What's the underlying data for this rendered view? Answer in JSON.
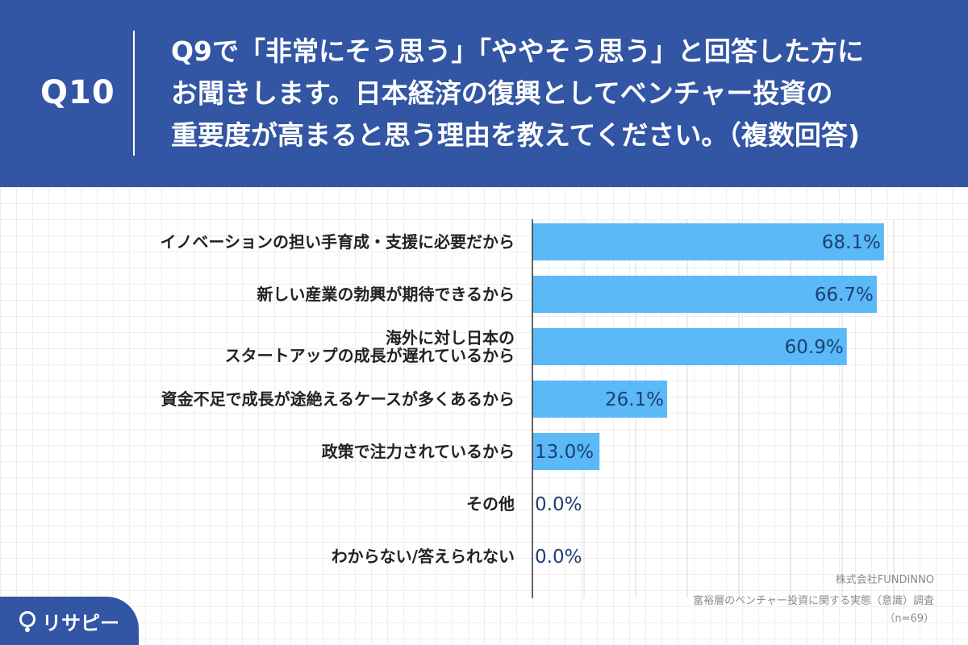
{
  "header": {
    "qnum": "Q10",
    "question_lines": [
      "Q9で「非常にそう思う」「ややそう思う」と回答した方に",
      "お聞きします。日本経済の復興としてベンチャー投資の",
      "重要度が高まると思う理由を教えてください。（複数回答)"
    ]
  },
  "chart_data": {
    "type": "bar",
    "orientation": "horizontal",
    "categories": [
      [
        "イノベーションの担い手育成・支援に必要だから"
      ],
      [
        "新しい産業の勃興が期待できるから"
      ],
      [
        "海外に対し日本の",
        "スタートアップの成長が遅れているから"
      ],
      [
        "資金不足で成長が途絶えるケースが多くあるから"
      ],
      [
        "政策で注力されているから"
      ],
      [
        "その他"
      ],
      [
        "わからない/答えられない"
      ]
    ],
    "values": [
      68.1,
      66.7,
      60.9,
      26.1,
      13.0,
      0.0,
      0.0
    ],
    "value_labels": [
      "68.1%",
      "66.7%",
      "60.9%",
      "26.1%",
      "13.0%",
      "0.0%",
      "0.0%"
    ],
    "xlim": [
      0,
      80
    ],
    "grid": true,
    "bar_color": "#5ab9f6"
  },
  "credit": {
    "company": "株式会社FUNDINNO",
    "survey": "富裕層のベンチャー投資に関する実態（意識）調査",
    "sample": "（n=69）"
  },
  "logo": {
    "text": "リサピー"
  }
}
